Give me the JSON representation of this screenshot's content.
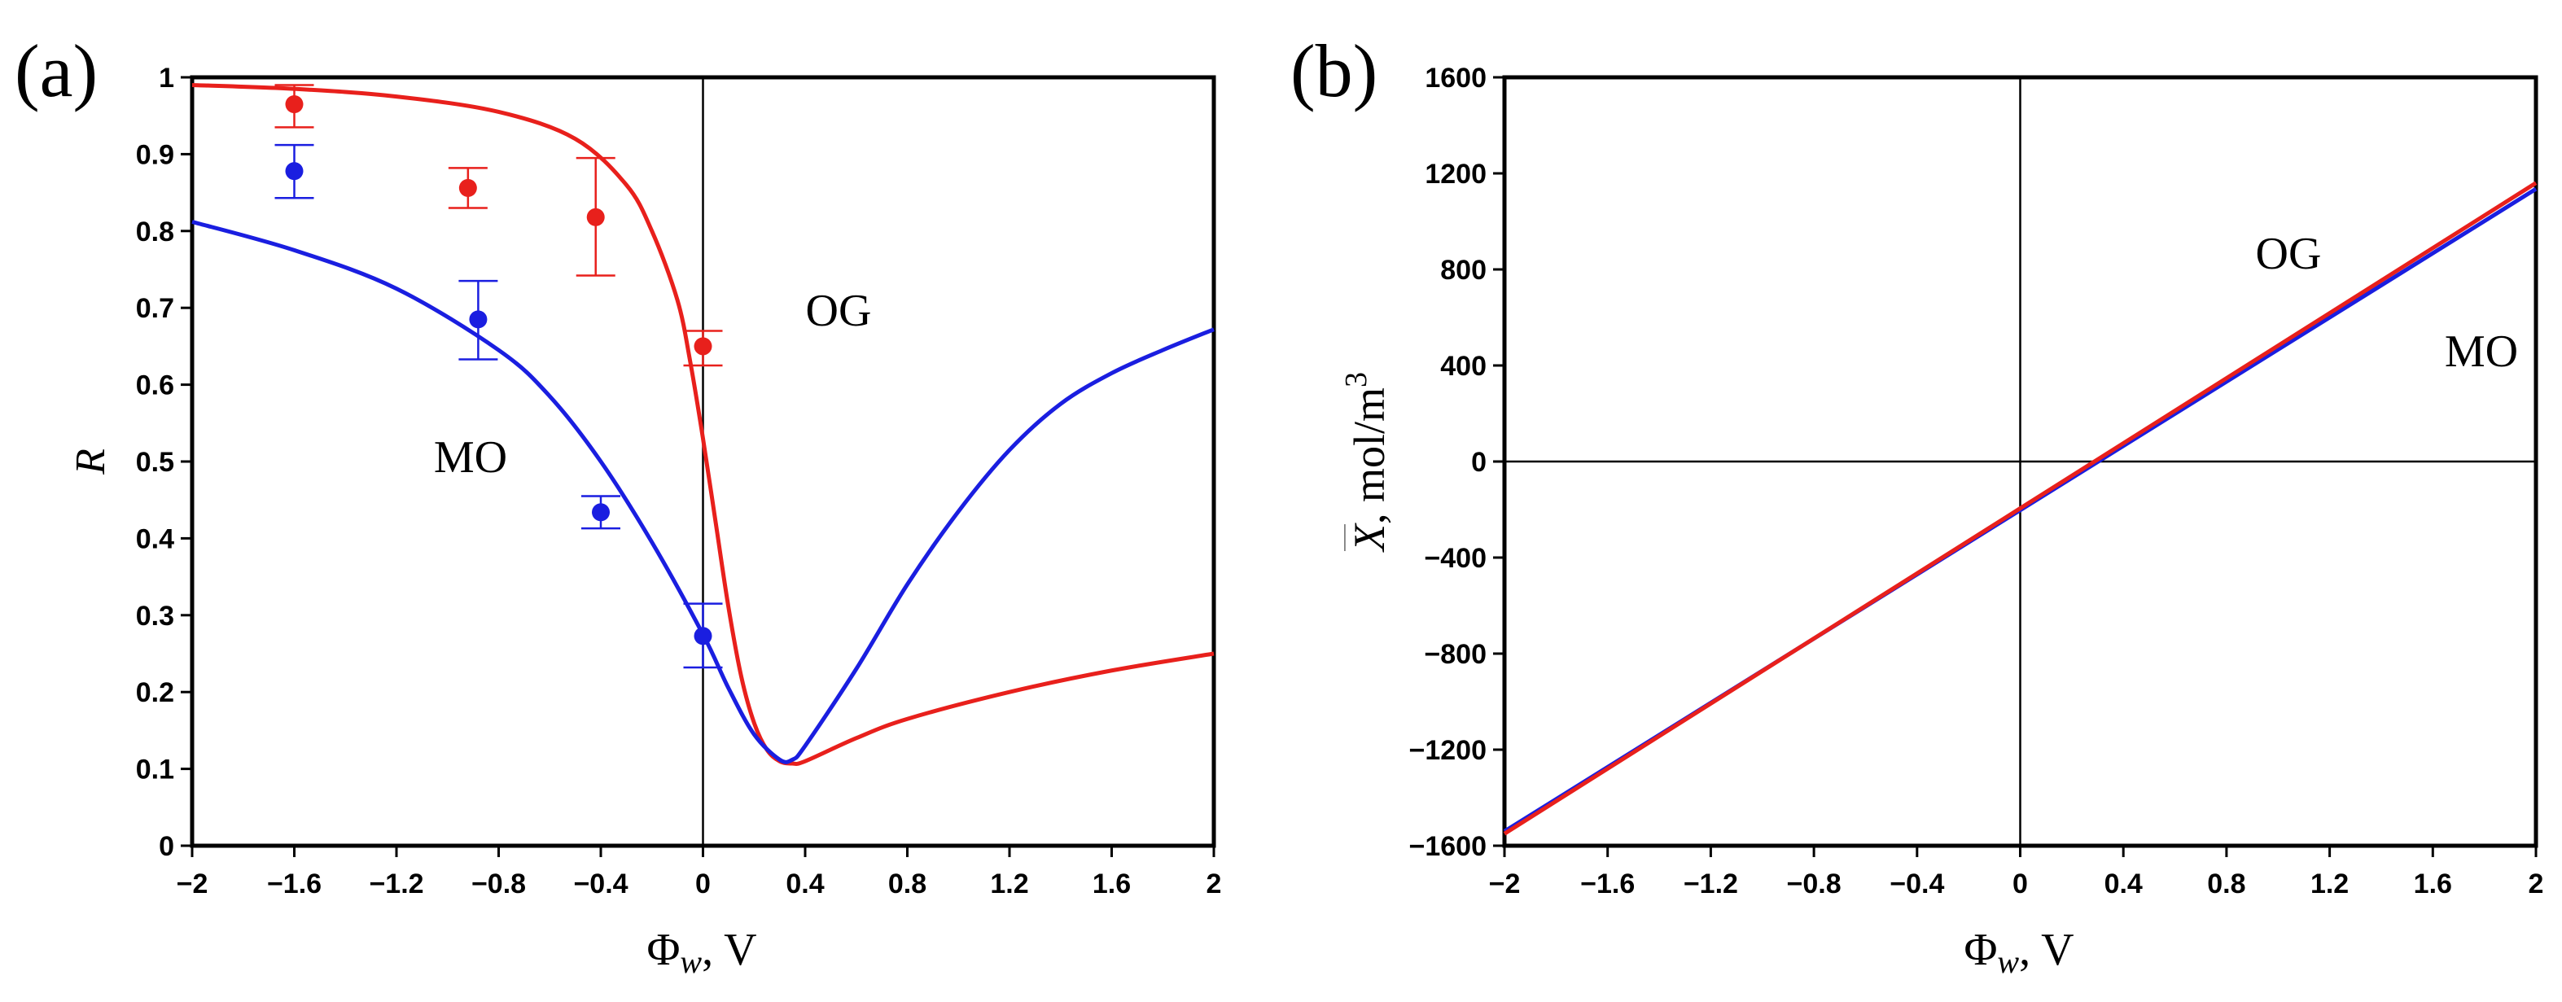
{
  "chart_data": [
    {
      "type": "line",
      "panel_label": "(a)",
      "xlabel": "Φ",
      "xlabel_sub": "w",
      "xlabel_unit": ", V",
      "ylabel": "R",
      "xlim": [
        -2,
        2
      ],
      "ylim": [
        0,
        1
      ],
      "x_ticks": [
        -2,
        -1.6,
        -1.2,
        -0.8,
        -0.4,
        0,
        0.4,
        0.8,
        1.2,
        1.6,
        2
      ],
      "x_tick_labels": [
        "−2",
        "−1.6",
        "−1.2",
        "−0.8",
        "−0.4",
        "0",
        "0.4",
        "0.8",
        "1.2",
        "1.6",
        "2"
      ],
      "y_ticks": [
        0,
        0.1,
        0.2,
        0.3,
        0.4,
        0.5,
        0.6,
        0.7,
        0.8,
        0.9,
        1
      ],
      "y_tick_labels": [
        "0",
        "0.1",
        "0.2",
        "0.3",
        "0.4",
        "0.5",
        "0.6",
        "0.7",
        "0.8",
        "0.9",
        "1"
      ],
      "grid": false,
      "reference_lines": {
        "x0": true,
        "y0": false
      },
      "annotations": [
        {
          "text": "OG",
          "x": 0.55,
          "y": 0.69
        },
        {
          "text": "MO",
          "x": -1.08,
          "y": 0.5
        }
      ],
      "series": [
        {
          "name": "OG",
          "color": "#e8201c",
          "x": [
            -2,
            -1.6,
            -1.2,
            -0.8,
            -0.5,
            -0.3,
            -0.2,
            -0.1,
            -0.05,
            0,
            0.05,
            0.1,
            0.15,
            0.2,
            0.25,
            0.3,
            0.35,
            0.4,
            0.6,
            0.8,
            1.2,
            1.6,
            2
          ],
          "y": [
            0.99,
            0.985,
            0.975,
            0.955,
            0.92,
            0.86,
            0.8,
            0.71,
            0.63,
            0.53,
            0.42,
            0.31,
            0.22,
            0.16,
            0.125,
            0.11,
            0.107,
            0.11,
            0.14,
            0.165,
            0.2,
            0.228,
            0.25
          ],
          "points": [
            {
              "x": -1.6,
              "y": 0.965,
              "err_lo": 0.935,
              "err_hi": 0.99
            },
            {
              "x": -0.92,
              "y": 0.856,
              "err_lo": 0.83,
              "err_hi": 0.882
            },
            {
              "x": -0.42,
              "y": 0.818,
              "err_lo": 0.742,
              "err_hi": 0.895
            },
            {
              "x": 0,
              "y": 0.65,
              "err_lo": 0.625,
              "err_hi": 0.67
            }
          ]
        },
        {
          "name": "MO",
          "color": "#1a1ee0",
          "x": [
            -2,
            -1.6,
            -1.2,
            -0.8,
            -0.6,
            -0.4,
            -0.2,
            0,
            0.1,
            0.2,
            0.3,
            0.35,
            0.4,
            0.6,
            0.8,
            1.0,
            1.2,
            1.4,
            1.6,
            1.8,
            2
          ],
          "y": [
            0.812,
            0.775,
            0.725,
            0.645,
            0.585,
            0.5,
            0.395,
            0.275,
            0.205,
            0.145,
            0.112,
            0.112,
            0.13,
            0.23,
            0.34,
            0.435,
            0.515,
            0.575,
            0.615,
            0.645,
            0.672
          ],
          "points": [
            {
              "x": -1.6,
              "y": 0.878,
              "err_lo": 0.843,
              "err_hi": 0.912
            },
            {
              "x": -0.88,
              "y": 0.685,
              "err_lo": 0.633,
              "err_hi": 0.735
            },
            {
              "x": -0.4,
              "y": 0.434,
              "err_lo": 0.413,
              "err_hi": 0.455
            },
            {
              "x": 0,
              "y": 0.273,
              "err_lo": 0.232,
              "err_hi": 0.315
            }
          ]
        }
      ]
    },
    {
      "type": "line",
      "panel_label": "(b)",
      "xlabel": "Φ",
      "xlabel_sub": "w",
      "xlabel_unit": ", V",
      "ylabel_symbol": "X",
      "ylabel_unit": ", mol/m",
      "ylabel_sup": "3",
      "xlim": [
        -2,
        2
      ],
      "ylim": [
        -1600,
        1600
      ],
      "x_ticks": [
        -2,
        -1.6,
        -1.2,
        -0.8,
        -0.4,
        0,
        0.4,
        0.8,
        1.2,
        1.6,
        2
      ],
      "x_tick_labels": [
        "−2",
        "−1.6",
        "−1.2",
        "−0.8",
        "−0.4",
        "0",
        "0.4",
        "0.8",
        "1.2",
        "1.6",
        "2"
      ],
      "y_ticks": [
        -1600,
        -1200,
        -800,
        -400,
        0,
        400,
        800,
        1200,
        1600
      ],
      "y_tick_labels": [
        "−1600",
        "−1200",
        "−800",
        "−400",
        "0",
        "400",
        "800",
        "1200",
        "1600"
      ],
      "grid": false,
      "reference_lines": {
        "x0": true,
        "y0": true
      },
      "annotations": [
        {
          "text": "OG",
          "x": 1.06,
          "y": 1040
        },
        {
          "text": "MO",
          "x": 1.84,
          "y": 440
        }
      ],
      "series": [
        {
          "name": "MO",
          "color": "#1a1ee0",
          "x": [
            -2,
            2
          ],
          "y": [
            -1540,
            1135
          ]
        },
        {
          "name": "OG",
          "color": "#e8201c",
          "x": [
            -2,
            2
          ],
          "y": [
            -1550,
            1160
          ]
        }
      ]
    }
  ]
}
